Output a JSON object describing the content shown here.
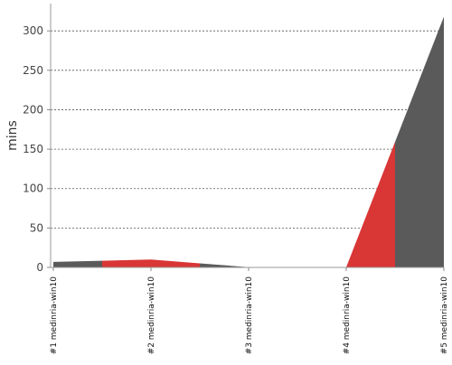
{
  "chart_data": {
    "type": "area",
    "title": "",
    "xlabel": "",
    "ylabel": "mins",
    "categories": [
      "#1 medinria-win10",
      "#2 medinria-win10",
      "#3 medinria-win10",
      "#4 medinria-win10",
      "#5 medinria-win10"
    ],
    "values": [
      7,
      10,
      0.3,
      0.3,
      318
    ],
    "segment_colors": [
      "#5a5a5a",
      "#d93636",
      "#5a5a5a",
      "#d93636",
      "#5a5a5a"
    ],
    "ylim": [
      0,
      330
    ],
    "yticks": [
      "0",
      "50",
      "100",
      "150",
      "200",
      "250",
      "300"
    ],
    "ytick_values": [
      0,
      50,
      100,
      150,
      200,
      250,
      300
    ],
    "grid": true,
    "legend": "none"
  }
}
